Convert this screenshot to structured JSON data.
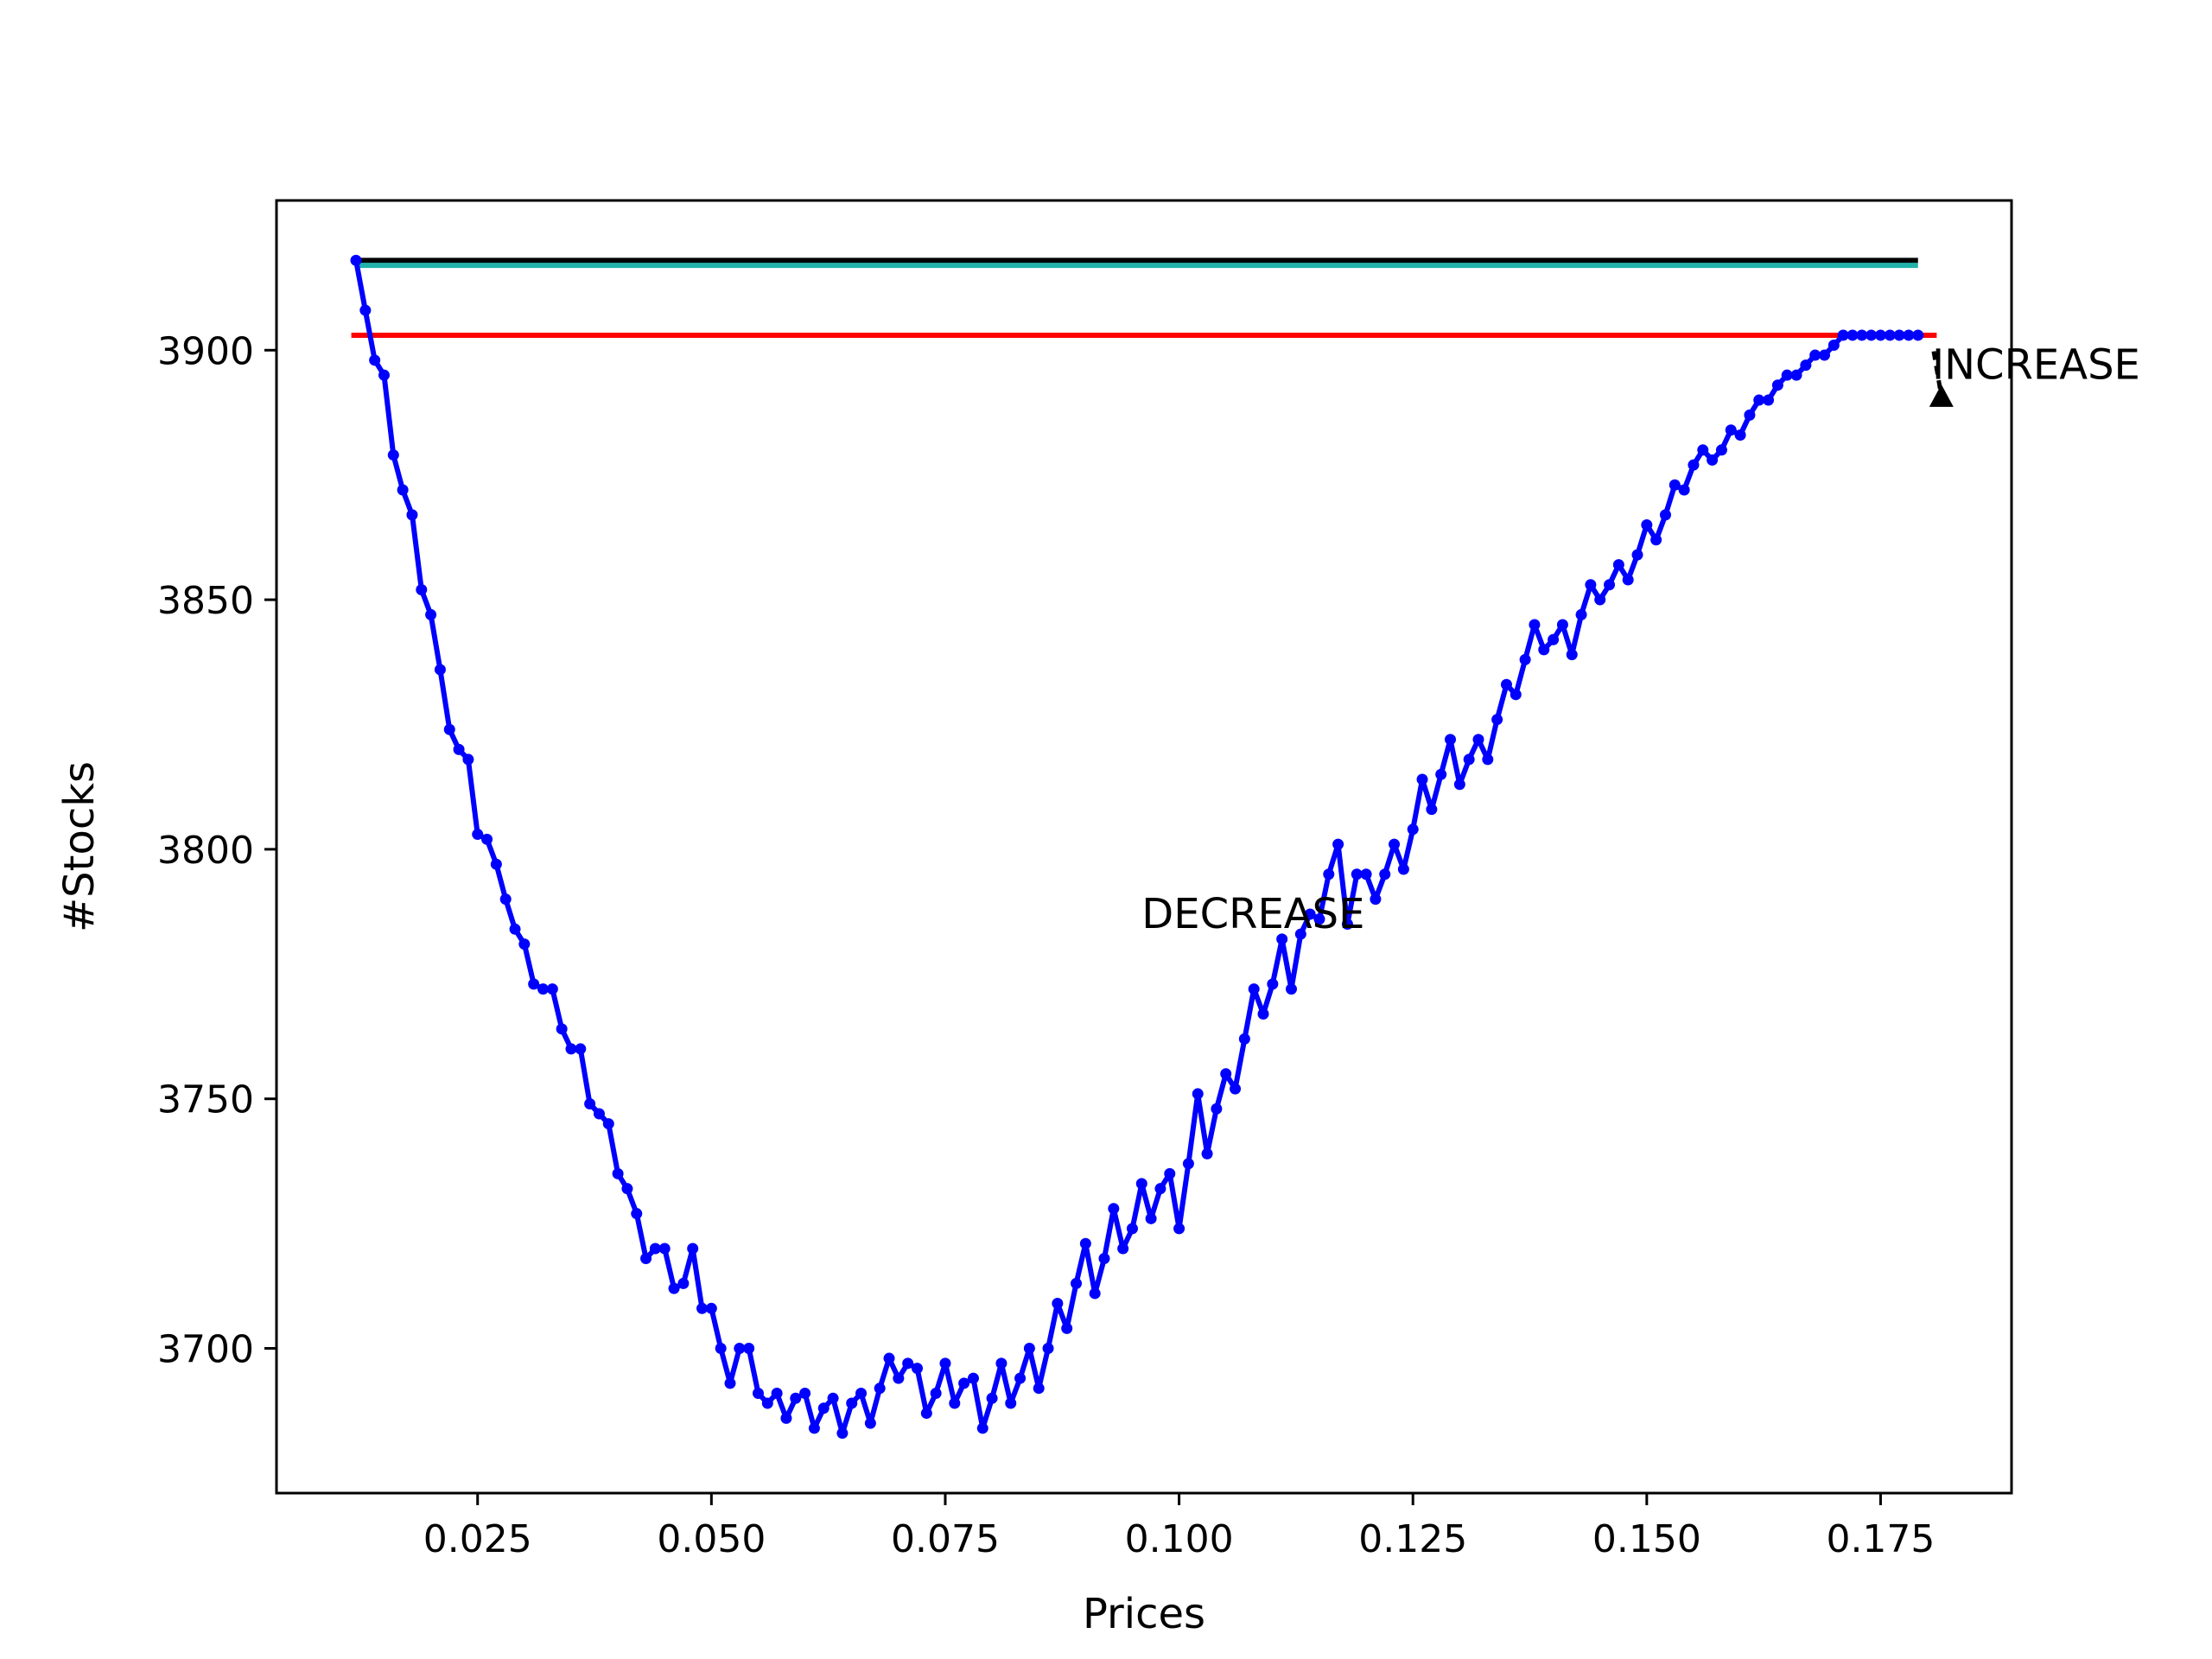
{
  "chart_data": {
    "type": "line",
    "xlabel": "Prices",
    "ylabel": "#Stocks",
    "xlim": [
      0.0035,
      0.189
    ],
    "ylim": [
      3671,
      3930
    ],
    "x_ticks": [
      0.025,
      0.05,
      0.075,
      0.1,
      0.125,
      0.15,
      0.175
    ],
    "x_tick_labels": [
      "0.025",
      "0.050",
      "0.075",
      "0.100",
      "0.125",
      "0.150",
      "0.175"
    ],
    "y_ticks": [
      3700,
      3750,
      3800,
      3850,
      3900
    ],
    "y_tick_labels": [
      "3700",
      "3750",
      "3800",
      "3850",
      "3900"
    ],
    "grid": false,
    "series": [
      {
        "color": "#0000ff",
        "marker": "dot",
        "x": [
          0.012,
          0.013,
          0.014,
          0.015,
          0.016,
          0.017,
          0.018,
          0.019,
          0.02,
          0.021,
          0.022,
          0.023,
          0.024,
          0.025,
          0.026,
          0.027,
          0.028,
          0.029,
          0.03,
          0.031,
          0.032,
          0.033,
          0.034,
          0.035,
          0.036,
          0.037,
          0.038,
          0.039,
          0.04,
          0.041,
          0.042,
          0.043,
          0.044,
          0.045,
          0.046,
          0.047,
          0.048,
          0.049,
          0.05,
          0.051,
          0.052,
          0.053,
          0.054,
          0.055,
          0.056,
          0.057,
          0.058,
          0.059,
          0.06,
          0.061,
          0.062,
          0.063,
          0.064,
          0.065,
          0.066,
          0.067,
          0.068,
          0.069,
          0.07,
          0.071,
          0.072,
          0.073,
          0.074,
          0.075,
          0.076,
          0.077,
          0.078,
          0.079,
          0.08,
          0.081,
          0.082,
          0.083,
          0.084,
          0.085,
          0.086,
          0.087,
          0.088,
          0.089,
          0.09,
          0.091,
          0.092,
          0.093,
          0.094,
          0.095,
          0.096,
          0.097,
          0.098,
          0.099,
          0.1,
          0.101,
          0.102,
          0.103,
          0.104,
          0.105,
          0.106,
          0.107,
          0.108,
          0.109,
          0.11,
          0.111,
          0.112,
          0.113,
          0.114,
          0.115,
          0.116,
          0.117,
          0.118,
          0.119,
          0.12,
          0.121,
          0.122,
          0.123,
          0.124,
          0.125,
          0.126,
          0.127,
          0.128,
          0.129,
          0.13,
          0.131,
          0.132,
          0.133,
          0.134,
          0.135,
          0.136,
          0.137,
          0.138,
          0.139,
          0.14,
          0.141,
          0.142,
          0.143,
          0.144,
          0.145,
          0.146,
          0.147,
          0.148,
          0.149,
          0.15,
          0.151,
          0.152,
          0.153,
          0.154,
          0.155,
          0.156,
          0.157,
          0.158,
          0.159,
          0.16,
          0.161,
          0.162,
          0.163,
          0.164,
          0.165,
          0.166,
          0.167,
          0.168,
          0.169,
          0.17,
          0.171,
          0.172,
          0.173,
          0.174,
          0.175,
          0.176,
          0.177,
          0.178,
          0.179
        ],
        "y": [
          3918,
          3908,
          3898,
          3895,
          3879,
          3872,
          3867,
          3852,
          3847,
          3836,
          3824,
          3820,
          3818,
          3803,
          3802,
          3797,
          3790,
          3784,
          3781,
          3773,
          3772,
          3772,
          3764,
          3760,
          3760,
          3749,
          3747,
          3745,
          3735,
          3732,
          3727,
          3718,
          3720,
          3720,
          3712,
          3713,
          3720,
          3708,
          3708,
          3700,
          3693,
          3700,
          3700,
          3691,
          3689,
          3691,
          3686,
          3690,
          3691,
          3684,
          3688,
          3690,
          3683,
          3689,
          3691,
          3685,
          3692,
          3698,
          3694,
          3697,
          3696,
          3687,
          3691,
          3697,
          3689,
          3693,
          3694,
          3684,
          3690,
          3697,
          3689,
          3694,
          3700,
          3692,
          3700,
          3709,
          3704,
          3713,
          3721,
          3711,
          3718,
          3728,
          3720,
          3724,
          3733,
          3726,
          3732,
          3735,
          3724,
          3737,
          3751,
          3739,
          3748,
          3755,
          3752,
          3762,
          3772,
          3767,
          3773,
          3782,
          3772,
          3783,
          3787,
          3786,
          3795,
          3801,
          3785,
          3795,
          3795,
          3790,
          3795,
          3801,
          3796,
          3804,
          3814,
          3808,
          3815,
          3822,
          3813,
          3818,
          3822,
          3818,
          3826,
          3833,
          3831,
          3838,
          3845,
          3840,
          3842,
          3845,
          3839,
          3847,
          3853,
          3850,
          3853,
          3857,
          3854,
          3859,
          3865,
          3862,
          3867,
          3873,
          3872,
          3877,
          3880,
          3878,
          3880,
          3884,
          3883,
          3887,
          3890,
          3890,
          3893,
          3895,
          3895,
          3897,
          3899,
          3899,
          3901,
          3903,
          3903,
          3903,
          3903,
          3903,
          3903,
          3903,
          3903,
          3903
        ]
      }
    ],
    "hlines": [
      {
        "y": 3918,
        "x": [
          0.012,
          0.179
        ],
        "color": "#000000"
      },
      {
        "y": 3917,
        "x": [
          0.012,
          0.179
        ],
        "color": "#20b2aa"
      },
      {
        "y": 3903,
        "x": [
          0.0115,
          0.181
        ],
        "color": "#ff0000"
      }
    ],
    "annotations": [
      {
        "text": "DECREASE",
        "x": 0.096,
        "y": 3787
      },
      {
        "text": "INCREASE",
        "x": 0.1805,
        "y": 3897,
        "arrow_to": [
          0.1815,
          3889
        ]
      }
    ]
  }
}
